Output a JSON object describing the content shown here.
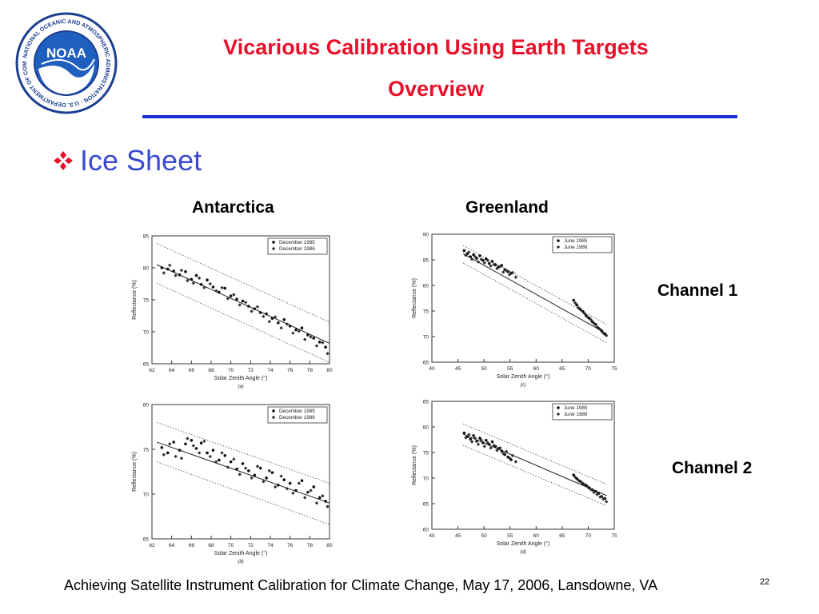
{
  "logo": {
    "text": "NOAA",
    "ring_text": "NATIONAL OCEANIC AND ATMOSPHERIC ADMINISTRATION · U.S. DEPARTMENT OF COMMERCE"
  },
  "title": {
    "line1": "Vicarious Calibration Using Earth Targets",
    "line2": "Overview"
  },
  "bullet": {
    "icon": "diamond-bullet-icon",
    "text": "Ice Sheet"
  },
  "columns": {
    "left": "Antarctica",
    "right": "Greenland"
  },
  "channels": {
    "ch1": "Channel 1",
    "ch2": "Channel 2"
  },
  "footer": {
    "text": "Achieving Satellite Instrument Calibration for Climate Change, May 17, 2006, Lansdowne, VA",
    "page": "22"
  },
  "colors": {
    "title": "#e8102a",
    "rule": "#1a2fd6",
    "bullet": "#3a4bd1"
  },
  "chart_data": [
    {
      "id": "a",
      "type": "scatter",
      "caption": "(a)",
      "xlabel": "Solar Zenith Angle (°)",
      "ylabel": "Reflectance (%)",
      "xlim": [
        62,
        80
      ],
      "ylim": [
        65,
        85
      ],
      "xticks": [
        62,
        64,
        66,
        68,
        70,
        72,
        74,
        76,
        78,
        80
      ],
      "yticks": [
        65,
        70,
        75,
        80,
        85
      ],
      "legend": [
        "December 1985",
        "December 1986"
      ],
      "legend_position": "top-right",
      "fit": {
        "x": [
          62.5,
          80
        ],
        "y": [
          80.5,
          68.2
        ]
      },
      "band": {
        "upper": {
          "x": [
            62.5,
            80
          ],
          "y": [
            83.8,
            71.5
          ]
        },
        "lower": {
          "x": [
            62.5,
            80
          ],
          "y": [
            77.6,
            65.2
          ]
        }
      },
      "series": [
        {
          "name": "December 1985",
          "x": [
            63.0,
            63.6,
            64.2,
            64.8,
            65.4,
            66.0,
            66.5,
            67.0,
            67.6,
            68.2,
            68.8,
            69.4,
            70.0,
            70.6,
            71.2,
            71.8,
            72.4,
            73.0,
            73.6,
            74.2,
            74.8,
            75.4,
            76.0,
            76.6,
            77.2,
            77.8,
            78.4,
            79.0,
            79.6
          ],
          "y": [
            80.0,
            79.8,
            79.5,
            78.9,
            79.4,
            78.2,
            78.8,
            77.4,
            78.1,
            77.0,
            76.2,
            76.8,
            75.6,
            75.1,
            74.8,
            74.0,
            73.6,
            73.0,
            72.8,
            72.1,
            71.4,
            71.9,
            70.9,
            70.3,
            70.6,
            69.5,
            69.0,
            68.4,
            67.6
          ]
        },
        {
          "name": "December 1986",
          "x": [
            63.2,
            63.8,
            64.4,
            65.0,
            65.6,
            66.2,
            66.8,
            67.3,
            67.9,
            68.5,
            69.1,
            69.7,
            70.3,
            70.9,
            71.5,
            72.1,
            72.7,
            73.3,
            73.9,
            74.5,
            75.1,
            75.7,
            76.3,
            76.9,
            77.5,
            78.1,
            78.7,
            79.3,
            79.8
          ],
          "y": [
            79.2,
            80.4,
            78.8,
            79.6,
            78.0,
            77.6,
            78.4,
            76.9,
            77.5,
            76.4,
            76.9,
            75.2,
            75.8,
            74.2,
            74.6,
            73.2,
            73.9,
            72.4,
            71.6,
            72.3,
            70.6,
            71.2,
            69.8,
            70.1,
            68.8,
            69.2,
            67.8,
            68.3,
            66.6
          ]
        }
      ]
    },
    {
      "id": "b",
      "type": "scatter",
      "caption": "(b)",
      "xlabel": "Solar Zenith Angle (°)",
      "ylabel": "Reflectance (%)",
      "xlim": [
        62,
        80
      ],
      "ylim": [
        65,
        80
      ],
      "xticks": [
        62,
        64,
        66,
        68,
        70,
        72,
        74,
        76,
        78,
        80
      ],
      "yticks": [
        65,
        70,
        75,
        80
      ],
      "legend": [
        "December 1985",
        "December 1986"
      ],
      "legend_position": "top-right",
      "fit": {
        "x": [
          62.5,
          80
        ],
        "y": [
          75.8,
          69.0
        ]
      },
      "band": {
        "upper": {
          "x": [
            62.5,
            80
          ],
          "y": [
            78.0,
            71.2
          ]
        },
        "lower": {
          "x": [
            62.5,
            80
          ],
          "y": [
            73.6,
            66.6
          ]
        }
      },
      "series": [
        {
          "name": "December 1985",
          "x": [
            63.0,
            63.6,
            64.2,
            64.8,
            65.4,
            66.0,
            66.5,
            67.0,
            67.6,
            68.2,
            68.8,
            69.4,
            70.0,
            70.6,
            71.2,
            71.8,
            72.4,
            73.0,
            73.6,
            74.2,
            74.8,
            75.4,
            76.0,
            76.6,
            77.2,
            77.8,
            78.4,
            79.0,
            79.6
          ],
          "y": [
            75.2,
            74.6,
            75.8,
            74.9,
            75.6,
            76.0,
            75.1,
            75.7,
            74.6,
            74.9,
            73.8,
            74.3,
            73.6,
            72.8,
            73.4,
            72.6,
            72.1,
            72.9,
            71.8,
            72.4,
            71.0,
            71.6,
            71.2,
            70.4,
            71.5,
            70.2,
            70.8,
            69.6,
            69.2
          ]
        },
        {
          "name": "December 1986",
          "x": [
            63.2,
            63.8,
            64.4,
            65.0,
            65.6,
            66.2,
            66.8,
            67.3,
            67.9,
            68.5,
            69.1,
            69.7,
            70.3,
            70.9,
            71.5,
            72.1,
            72.7,
            73.3,
            73.9,
            74.5,
            75.1,
            75.7,
            76.3,
            76.9,
            77.5,
            78.1,
            78.7,
            79.3,
            79.8
          ],
          "y": [
            74.4,
            75.6,
            74.2,
            74.0,
            76.2,
            75.4,
            74.6,
            75.9,
            74.2,
            73.6,
            74.6,
            73.0,
            73.9,
            72.2,
            72.9,
            71.8,
            73.1,
            71.4,
            72.6,
            70.8,
            72.0,
            70.6,
            70.1,
            71.2,
            69.6,
            70.4,
            69.0,
            69.8,
            68.6
          ]
        }
      ]
    },
    {
      "id": "c",
      "type": "scatter",
      "caption": "(c)",
      "xlabel": "Solar Zenith Angle (°)",
      "ylabel": "Reflectance (%)",
      "xlim": [
        40,
        75
      ],
      "ylim": [
        65,
        90
      ],
      "xticks": [
        40,
        45,
        50,
        55,
        60,
        65,
        70,
        75
      ],
      "yticks": [
        65,
        70,
        75,
        80,
        85,
        90
      ],
      "legend": [
        "June 1985",
        "June 1986"
      ],
      "legend_position": "top-right",
      "fit": {
        "x": [
          46,
          73.5
        ],
        "y": [
          86.2,
          70.6
        ]
      },
      "band": {
        "upper": {
          "x": [
            46,
            73.5
          ],
          "y": [
            87.8,
            72.4
          ]
        },
        "lower": {
          "x": [
            46,
            73.5
          ],
          "y": [
            84.4,
            68.8
          ]
        }
      },
      "series": [
        {
          "name": "June 1985",
          "x": [
            46.2,
            46.8,
            47.4,
            48.0,
            48.6,
            49.2,
            49.8,
            50.4,
            51.0,
            51.6,
            52.2,
            52.8,
            53.4,
            54.0,
            54.6,
            55.2,
            67.2,
            67.8,
            68.4,
            69.0,
            69.6,
            70.2,
            70.8,
            71.4,
            72.0,
            72.6,
            73.2
          ],
          "y": [
            86.8,
            86.2,
            85.6,
            86.0,
            85.3,
            85.8,
            84.9,
            85.2,
            84.3,
            84.7,
            84.0,
            83.6,
            83.9,
            83.1,
            82.7,
            82.4,
            77.1,
            76.2,
            75.4,
            74.9,
            74.1,
            73.6,
            72.9,
            72.4,
            71.6,
            71.1,
            70.5
          ]
        },
        {
          "name": "June 1986",
          "x": [
            46.5,
            47.1,
            47.7,
            48.3,
            48.9,
            49.5,
            50.1,
            50.7,
            51.3,
            51.9,
            52.5,
            53.1,
            53.7,
            54.3,
            54.9,
            55.5,
            56.1,
            67.5,
            68.1,
            68.7,
            69.3,
            69.9,
            70.5,
            71.1,
            71.7,
            72.3,
            72.9,
            73.5
          ],
          "y": [
            85.9,
            86.5,
            85.1,
            85.6,
            84.6,
            85.1,
            84.4,
            84.9,
            83.8,
            84.1,
            83.3,
            83.7,
            82.6,
            82.9,
            82.1,
            82.5,
            81.6,
            76.6,
            75.7,
            75.1,
            74.5,
            73.8,
            73.3,
            72.6,
            71.9,
            71.4,
            70.7,
            70.2
          ]
        }
      ]
    },
    {
      "id": "d",
      "type": "scatter",
      "caption": "(d)",
      "xlabel": "Solar Zenith Angle (°)",
      "ylabel": "Reflectance (%)",
      "xlim": [
        40,
        75
      ],
      "ylim": [
        60,
        85
      ],
      "xticks": [
        40,
        45,
        50,
        55,
        60,
        65,
        70,
        75
      ],
      "yticks": [
        60,
        65,
        70,
        75,
        80,
        85
      ],
      "legend": [
        "June 1985",
        "June 1986"
      ],
      "legend_position": "top-right",
      "fit": {
        "x": [
          46,
          73.5
        ],
        "y": [
          78.6,
          66.6
        ]
      },
      "band": {
        "upper": {
          "x": [
            46,
            73.5
          ],
          "y": [
            80.6,
            68.8
          ]
        },
        "lower": {
          "x": [
            46,
            73.5
          ],
          "y": [
            76.4,
            64.6
          ]
        }
      },
      "series": [
        {
          "name": "June 1985",
          "x": [
            46.2,
            46.8,
            47.4,
            48.0,
            48.6,
            49.2,
            49.8,
            50.4,
            51.0,
            51.6,
            52.2,
            52.8,
            53.4,
            54.0,
            54.6,
            55.2,
            67.2,
            67.8,
            68.4,
            69.0,
            69.6,
            70.2,
            70.8,
            71.4,
            72.0,
            72.6,
            73.2
          ],
          "y": [
            78.8,
            78.1,
            77.6,
            78.3,
            77.2,
            77.8,
            76.9,
            77.4,
            76.6,
            77.1,
            76.2,
            75.8,
            75.3,
            74.6,
            74.1,
            73.6,
            70.6,
            69.9,
            69.4,
            68.9,
            68.6,
            68.1,
            67.7,
            67.4,
            67.0,
            66.4,
            66.0
          ]
        },
        {
          "name": "June 1986",
          "x": [
            46.5,
            47.1,
            47.7,
            48.3,
            48.9,
            49.5,
            50.1,
            50.7,
            51.3,
            51.9,
            52.5,
            53.1,
            53.7,
            54.3,
            54.9,
            55.5,
            56.1,
            67.5,
            68.1,
            68.7,
            69.3,
            69.9,
            70.5,
            71.1,
            71.7,
            72.3,
            72.9,
            73.5
          ],
          "y": [
            77.9,
            78.5,
            77.1,
            77.8,
            76.6,
            77.4,
            76.2,
            76.9,
            75.9,
            76.4,
            75.4,
            75.9,
            74.8,
            75.2,
            73.9,
            74.4,
            73.2,
            70.2,
            69.6,
            69.2,
            68.7,
            68.3,
            67.8,
            67.2,
            66.8,
            66.3,
            65.9,
            65.4
          ]
        }
      ]
    }
  ]
}
